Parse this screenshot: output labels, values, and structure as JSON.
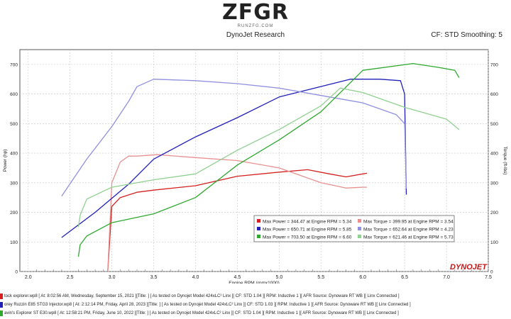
{
  "header": {
    "logo_text": "ZFGR",
    "logo_sub": "RUNZFG.COM",
    "center": "DynoJet Research",
    "right": "CF: STD Smoothing: 5"
  },
  "colors": {
    "red": "#d42020",
    "blue": "#2020b8",
    "green": "#30a830",
    "red_light": "#e89090",
    "blue_light": "#9090e0",
    "green_light": "#90d090"
  },
  "chart_data": {
    "type": "line",
    "xlabel": "Engine RPM (rpmx1000)",
    "ylabel_left": "Power (hp)",
    "ylabel_right": "Torque (ft-lbs)",
    "xlim": [
      1.9,
      7.5
    ],
    "ylim": [
      0,
      750
    ],
    "x_ticks": [
      "2.0",
      "2.5",
      "3.0",
      "3.5",
      "4.0",
      "4.5",
      "5.0",
      "5.5",
      "6.0",
      "6.5",
      "7.0",
      "7.5"
    ],
    "y_ticks": [
      "0",
      "100",
      "200",
      "300",
      "400",
      "500",
      "600",
      "700"
    ],
    "brand_mark": "DYNOJET",
    "series": [
      {
        "color": "red",
        "kind": "power",
        "x": [
          2.95,
          3.0,
          3.1,
          3.3,
          3.5,
          4.0,
          4.5,
          5.0,
          5.34,
          5.6,
          5.8,
          6.0,
          6.05
        ],
        "y": [
          0,
          220,
          250,
          268,
          275,
          290,
          322,
          336,
          344,
          330,
          320,
          330,
          332
        ]
      },
      {
        "color": "red_light",
        "kind": "torque",
        "x": [
          2.95,
          3.0,
          3.1,
          3.2,
          3.3,
          3.54,
          4.0,
          4.5,
          5.0,
          5.5,
          5.8,
          6.0,
          6.05
        ],
        "y": [
          0,
          300,
          370,
          390,
          390,
          395,
          385,
          375,
          350,
          300,
          282,
          285,
          285
        ]
      },
      {
        "color": "blue",
        "kind": "power",
        "x": [
          2.4,
          2.8,
          3.2,
          3.5,
          4.0,
          4.5,
          5.0,
          5.85,
          6.2,
          6.45,
          6.5,
          6.52
        ],
        "y": [
          115,
          200,
          295,
          380,
          455,
          520,
          590,
          650,
          650,
          645,
          600,
          260
        ]
      },
      {
        "color": "blue_light",
        "kind": "torque",
        "x": [
          2.4,
          2.7,
          3.0,
          3.2,
          3.3,
          3.5,
          4.0,
          4.5,
          5.0,
          5.5,
          6.0,
          6.4,
          6.5,
          6.52
        ],
        "y": [
          255,
          380,
          490,
          575,
          625,
          650,
          645,
          635,
          620,
          595,
          570,
          530,
          500,
          280
        ]
      },
      {
        "color": "green",
        "kind": "power",
        "x": [
          2.6,
          2.62,
          2.7,
          3.0,
          3.5,
          4.0,
          4.5,
          5.0,
          5.5,
          6.0,
          6.6,
          6.9,
          7.1,
          7.15
        ],
        "y": [
          50,
          90,
          120,
          165,
          195,
          250,
          360,
          445,
          540,
          680,
          703,
          690,
          680,
          655
        ]
      },
      {
        "color": "green_light",
        "kind": "torque",
        "x": [
          2.6,
          2.62,
          2.7,
          3.0,
          3.5,
          4.0,
          4.5,
          5.0,
          5.5,
          5.73,
          6.0,
          6.5,
          7.0,
          7.15
        ],
        "y": [
          150,
          190,
          245,
          285,
          310,
          330,
          410,
          480,
          560,
          620,
          605,
          555,
          515,
          480
        ]
      }
    ],
    "legend": [
      {
        "color": "red",
        "left": "Max Power = 344.47 at Engine RPM = 5.34",
        "tcolor": "red_light",
        "right": "Max Torque = 399.95 at Engine RPM = 3.54"
      },
      {
        "color": "blue",
        "left": "Max Power = 650.71 at Engine RPM = 5.85",
        "tcolor": "blue_light",
        "right": "Max Torque = 652.64 at Engine RPM = 4.23"
      },
      {
        "color": "green",
        "left": "Max Power = 703.50 at Engine RPM = 6.60",
        "tcolor": "green_light",
        "right": "Max Torque = 621.46 at Engine RPM = 5.73"
      }
    ]
  },
  "footer": [
    {
      "color": "red",
      "text": "tock explorer.wp8 [ At: 8:02:56 AM, Wednesday, September 15, 2021 ][Title: ] [ As tested on Dynojet Model 424xLC² Linx ][ CF: STD 1.04 ][ RPM: Inductive 1 ][ AFR Source: Dynoware RT WB ][ Linx Connected ]"
    },
    {
      "color": "blue",
      "text": "orey Ruzzin E85 STG3 Injector.wp8 [ At: 2:12:14 PM, Friday, April 28, 2023 ][Title: ] [ As tested on Dynojet Model 424xLC² Linx ][ CF: STD 1.03 ][ RPM: Inductive 1 ][ AFR Source: Dynoware RT WB ][ Linx Connected ]"
    },
    {
      "color": "green",
      "text": "avin's Explorer ST E30.wp8 [ At: 12:58:21 PM, Friday, June 10, 2022 ][Title: ] [ As tested on Dynojet Model 424xLC² Linx ][ CF: STD 1.04 ][ RPM: Inductive 1 ][ AFR Source: Dynoware RT WB ][ Linx Connected ]"
    }
  ]
}
